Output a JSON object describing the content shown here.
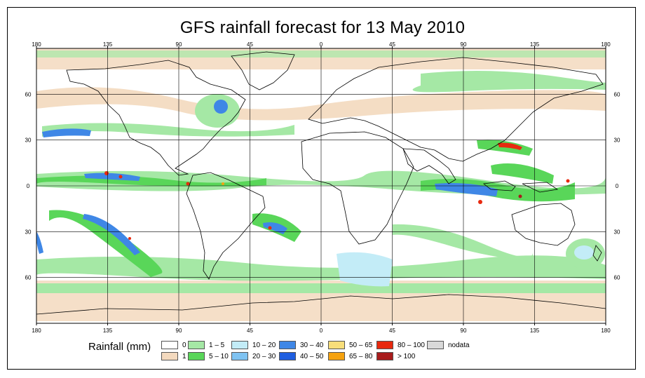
{
  "title": "GFS rainfall forecast for 13 May 2010",
  "map": {
    "lon_ticks": [
      "180",
      "135",
      "90",
      "45",
      "0",
      "45",
      "90",
      "135",
      "180"
    ],
    "lat_ticks": [
      "60",
      "30",
      "0",
      "30",
      "60"
    ],
    "colors": {
      "ocean_bg": "#ffffff",
      "land_outline": "#000000",
      "grid": "#000000"
    }
  },
  "legend": {
    "title": "Rainfall (mm)",
    "entries": [
      {
        "label": "0",
        "color": "#ffffff"
      },
      {
        "label": "1",
        "color": "#f3d9be"
      },
      {
        "label": "1 – 5",
        "color": "#a5e8a5"
      },
      {
        "label": "5 – 10",
        "color": "#59d659"
      },
      {
        "label": "10 – 20",
        "color": "#c3ecf7"
      },
      {
        "label": "20 – 30",
        "color": "#7fc3f2"
      },
      {
        "label": "30 – 40",
        "color": "#3f87e6"
      },
      {
        "label": "40 – 50",
        "color": "#1f5ee0"
      },
      {
        "label": "50 – 65",
        "color": "#f8de7a"
      },
      {
        "label": "65 – 80",
        "color": "#f5a20f"
      },
      {
        "label": "80 – 100",
        "color": "#e8290f"
      },
      {
        "label": "> 100",
        "color": "#a81c1c"
      },
      {
        "label": "nodata",
        "color": "#d9d9d9"
      }
    ]
  }
}
